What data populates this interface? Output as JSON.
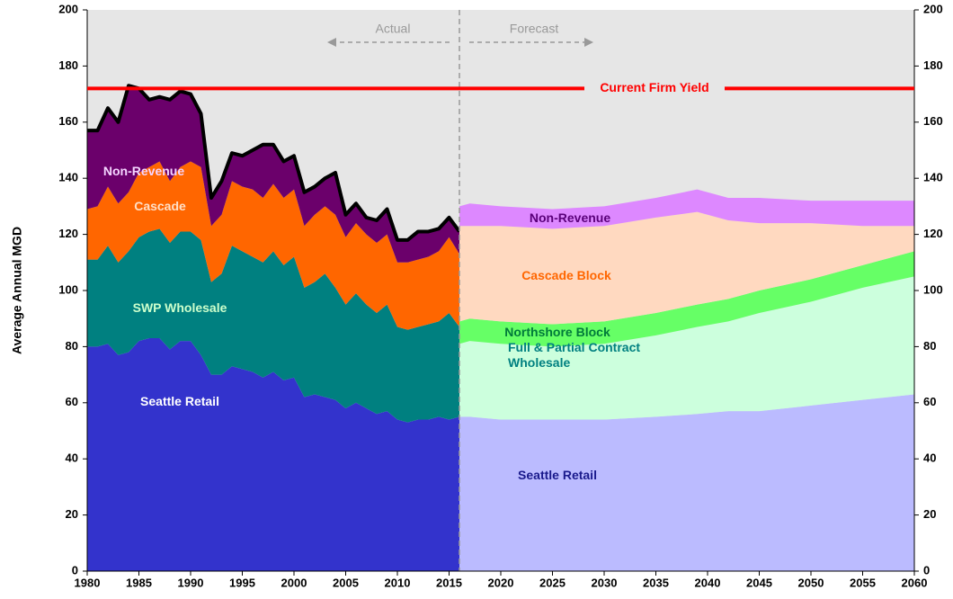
{
  "chart_data": {
    "type": "area",
    "stacked": true,
    "ylabel": "Average Annual MGD",
    "xlim": [
      1980,
      2060
    ],
    "xticks": [
      1980,
      1985,
      1990,
      1995,
      2000,
      2005,
      2010,
      2015,
      2020,
      2025,
      2030,
      2035,
      2040,
      2045,
      2050,
      2055,
      2060
    ],
    "ylim": [
      0,
      200
    ],
    "yticks": [
      0,
      20,
      40,
      60,
      80,
      100,
      120,
      140,
      160,
      180,
      200
    ],
    "y2lim": [
      0,
      200
    ],
    "y2ticks": [
      0,
      20,
      40,
      60,
      80,
      100,
      120,
      140,
      160,
      180,
      200
    ],
    "background": "#e6e6e6",
    "total_line_color": "#000000",
    "actual": {
      "label": "Actual",
      "x": [
        1980,
        1981,
        1982,
        1983,
        1984,
        1985,
        1986,
        1987,
        1988,
        1989,
        1990,
        1991,
        1992,
        1993,
        1994,
        1995,
        1996,
        1997,
        1998,
        1999,
        2000,
        2001,
        2002,
        2003,
        2004,
        2005,
        2006,
        2007,
        2008,
        2009,
        2010,
        2011,
        2012,
        2013,
        2014,
        2015,
        2016
      ],
      "series": [
        {
          "name": "Seattle Retail",
          "color": "#3333cc",
          "label_color": "#ffffff",
          "values": [
            80,
            80,
            81,
            77,
            78,
            82,
            83,
            83,
            79,
            82,
            82,
            77,
            70,
            70,
            73,
            72,
            71,
            69,
            71,
            68,
            69,
            62,
            63,
            62,
            61,
            58,
            60,
            58,
            56,
            57,
            54,
            53,
            54,
            54,
            55,
            54,
            55
          ]
        },
        {
          "name": "SWP Wholesale",
          "color": "#008080",
          "label_color": "#ccffcc",
          "values": [
            31,
            31,
            35,
            33,
            36,
            37,
            38,
            39,
            38,
            39,
            39,
            41,
            33,
            36,
            43,
            42,
            41,
            41,
            43,
            41,
            43,
            39,
            40,
            44,
            40,
            37,
            39,
            37,
            36,
            38,
            33,
            33,
            33,
            34,
            34,
            38,
            32
          ]
        },
        {
          "name": "Cascade",
          "color": "#ff6600",
          "label_color": "#ffe0c8",
          "values": [
            18,
            19,
            21,
            21,
            21,
            23,
            23,
            24,
            22,
            23,
            25,
            26,
            20,
            21,
            23,
            23,
            24,
            23,
            24,
            24,
            24,
            22,
            24,
            24,
            26,
            24,
            25,
            25,
            25,
            25,
            23,
            24,
            24,
            24,
            25,
            27,
            26
          ]
        },
        {
          "name": "Non-Revenue",
          "color": "#6b006b",
          "label_color": "#f4d4ff",
          "values": [
            28,
            27,
            28,
            29,
            38,
            30,
            24,
            23,
            29,
            27,
            24,
            19,
            10,
            12,
            10,
            11,
            14,
            19,
            14,
            13,
            12,
            12,
            10,
            10,
            15,
            8,
            7,
            6,
            8,
            9,
            8,
            8,
            10,
            9,
            8,
            7,
            8
          ]
        }
      ]
    },
    "forecast": {
      "label": "Forecast",
      "x": [
        2016,
        2017,
        2020,
        2025,
        2030,
        2035,
        2039,
        2042,
        2045,
        2050,
        2055,
        2060
      ],
      "series": [
        {
          "name": "Seattle Retail",
          "color": "#bbbbff",
          "label_color": "#1a1a8c",
          "values": [
            55,
            55,
            54,
            54,
            54,
            55,
            56,
            57,
            57,
            59,
            61,
            63
          ]
        },
        {
          "name": "Full & Partial Contract Wholesale",
          "color": "#ccffdd",
          "label_color": "#008080",
          "values": [
            26,
            27,
            27,
            26,
            27,
            29,
            31,
            32,
            35,
            37,
            40,
            42
          ]
        },
        {
          "name": "Northshore Block",
          "color": "#66ff66",
          "label_color": "#007a3a",
          "values": [
            8,
            8,
            8,
            8,
            8,
            8,
            8,
            8,
            8,
            8,
            8,
            9
          ]
        },
        {
          "name": "Cascade Block",
          "color": "#ffd9c0",
          "label_color": "#ff6600",
          "values": [
            34,
            33,
            34,
            34,
            34,
            34,
            33,
            28,
            24,
            20,
            14,
            9
          ]
        },
        {
          "name": "Non-Revenue",
          "color": "#dd88ff",
          "label_color": "#5a007a",
          "values": [
            7,
            8,
            7,
            7,
            7,
            7,
            8,
            8,
            9,
            8,
            9,
            9
          ]
        }
      ]
    },
    "firm_yield": {
      "label": "Current Firm Yield",
      "value": 172,
      "color": "#ff0000"
    }
  }
}
